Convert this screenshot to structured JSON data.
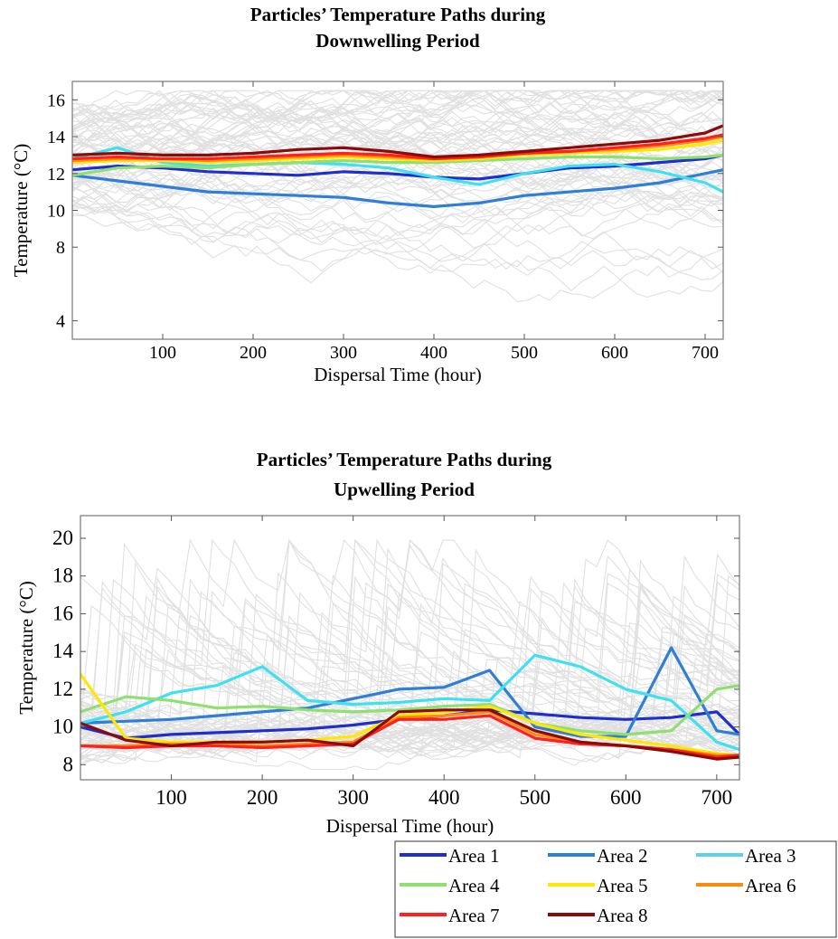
{
  "chart_data": [
    {
      "type": "line",
      "title": "Particles’ Temperature Paths during Downwelling Period",
      "title_lines": [
        "Particles’ Temperature Paths during",
        "Downwelling Period"
      ],
      "xlabel": "Dispersal Time (hour)",
      "ylabel": "Temperature (°C)",
      "xlim": [
        0,
        720
      ],
      "ylim": [
        3,
        17
      ],
      "xticks": [
        100,
        200,
        300,
        400,
        500,
        600,
        700
      ],
      "yticks": [
        4,
        8,
        10,
        12,
        14,
        16
      ],
      "background": "light grey trajectories of individual particles",
      "grid": false,
      "series": [
        {
          "name": "Area 1",
          "color": "#1f2ecc",
          "x": [
            0,
            50,
            100,
            150,
            200,
            250,
            300,
            350,
            400,
            450,
            500,
            550,
            600,
            650,
            700,
            720
          ],
          "y": [
            12.2,
            12.4,
            12.3,
            12.1,
            12.0,
            11.9,
            12.1,
            12.0,
            11.8,
            11.7,
            12.0,
            12.3,
            12.4,
            12.6,
            12.8,
            13.0
          ]
        },
        {
          "name": "Area 2",
          "color": "#2f7ed8",
          "x": [
            0,
            50,
            100,
            150,
            200,
            250,
            300,
            350,
            400,
            450,
            500,
            550,
            600,
            650,
            700,
            720
          ],
          "y": [
            11.9,
            11.6,
            11.3,
            11.0,
            10.9,
            10.8,
            10.7,
            10.4,
            10.2,
            10.4,
            10.8,
            11.0,
            11.2,
            11.5,
            12.0,
            12.2
          ]
        },
        {
          "name": "Area 3",
          "color": "#3fe0f0",
          "x": [
            0,
            50,
            100,
            150,
            200,
            250,
            300,
            350,
            400,
            450,
            500,
            550,
            600,
            650,
            700,
            720
          ],
          "y": [
            12.8,
            13.4,
            12.6,
            12.4,
            12.5,
            12.6,
            12.5,
            12.3,
            11.8,
            11.4,
            12.0,
            12.4,
            12.5,
            12.1,
            11.5,
            11.0
          ]
        },
        {
          "name": "Area 4",
          "color": "#8fe070",
          "x": [
            0,
            50,
            100,
            150,
            200,
            250,
            300,
            350,
            400,
            450,
            500,
            550,
            600,
            650,
            700,
            720
          ],
          "y": [
            11.9,
            12.3,
            12.4,
            12.3,
            12.5,
            12.6,
            12.7,
            12.6,
            12.6,
            12.7,
            12.8,
            12.9,
            12.9,
            12.8,
            12.9,
            13.0
          ]
        },
        {
          "name": "Area 5",
          "color": "#ffe800",
          "x": [
            0,
            50,
            100,
            150,
            200,
            250,
            300,
            350,
            400,
            450,
            500,
            550,
            600,
            650,
            700,
            720
          ],
          "y": [
            12.6,
            12.7,
            12.7,
            12.6,
            12.7,
            12.8,
            12.9,
            12.8,
            12.7,
            12.8,
            13.0,
            13.1,
            13.2,
            13.3,
            13.6,
            13.8
          ]
        },
        {
          "name": "Area 6",
          "color": "#ff8a10",
          "x": [
            0,
            50,
            100,
            150,
            200,
            250,
            300,
            350,
            400,
            450,
            500,
            550,
            600,
            650,
            700,
            720
          ],
          "y": [
            12.7,
            12.8,
            12.8,
            12.7,
            12.8,
            12.9,
            13.0,
            12.9,
            12.8,
            12.9,
            13.1,
            13.2,
            13.3,
            13.5,
            13.8,
            14.0
          ]
        },
        {
          "name": "Area 7",
          "color": "#ff2020",
          "x": [
            0,
            50,
            100,
            150,
            200,
            250,
            300,
            350,
            400,
            450,
            500,
            550,
            600,
            650,
            700,
            720
          ],
          "y": [
            12.8,
            12.9,
            12.8,
            12.8,
            12.9,
            13.0,
            13.1,
            13.0,
            12.8,
            12.9,
            13.1,
            13.2,
            13.4,
            13.6,
            13.9,
            14.1
          ]
        },
        {
          "name": "Area 8",
          "color": "#8b0a0a",
          "x": [
            0,
            50,
            100,
            150,
            200,
            250,
            300,
            350,
            400,
            450,
            500,
            550,
            600,
            650,
            700,
            720
          ],
          "y": [
            13.0,
            13.1,
            13.0,
            13.0,
            13.1,
            13.3,
            13.4,
            13.2,
            12.9,
            13.0,
            13.2,
            13.4,
            13.6,
            13.8,
            14.2,
            14.6
          ]
        }
      ]
    },
    {
      "type": "line",
      "title": "Particles’ Temperature Paths during Upwelling Period",
      "title_lines": [
        "Particles’ Temperature Paths during",
        "Upwelling Period"
      ],
      "xlabel": "Dispersal Time (hour)",
      "ylabel": "Temperature (°C)",
      "xlim": [
        0,
        725
      ],
      "ylim": [
        7.2,
        21.2
      ],
      "xticks": [
        100,
        200,
        300,
        400,
        500,
        600,
        700
      ],
      "yticks": [
        8,
        10,
        12,
        14,
        16,
        18,
        20
      ],
      "background": "light grey trajectories of individual particles",
      "grid": false,
      "series": [
        {
          "name": "Area 1",
          "color": "#1f2ecc",
          "x": [
            0,
            50,
            100,
            150,
            200,
            250,
            300,
            350,
            400,
            450,
            500,
            550,
            600,
            650,
            700,
            725
          ],
          "y": [
            10.0,
            9.4,
            9.6,
            9.7,
            9.8,
            9.9,
            10.1,
            10.4,
            10.6,
            10.9,
            10.7,
            10.5,
            10.4,
            10.5,
            10.8,
            9.6
          ]
        },
        {
          "name": "Area 2",
          "color": "#2f7ed8",
          "x": [
            0,
            50,
            100,
            150,
            200,
            250,
            300,
            350,
            400,
            450,
            500,
            550,
            600,
            650,
            700,
            725
          ],
          "y": [
            10.2,
            10.3,
            10.4,
            10.6,
            10.8,
            11.0,
            11.5,
            12.0,
            12.1,
            13.0,
            10.0,
            9.5,
            9.5,
            14.2,
            9.8,
            9.6
          ]
        },
        {
          "name": "Area 3",
          "color": "#3fe0f0",
          "x": [
            0,
            50,
            100,
            150,
            200,
            250,
            300,
            350,
            400,
            450,
            500,
            550,
            600,
            650,
            700,
            725
          ],
          "y": [
            10.2,
            10.8,
            11.8,
            12.2,
            13.2,
            11.4,
            11.2,
            11.3,
            11.5,
            11.4,
            13.8,
            13.2,
            12.0,
            11.4,
            9.2,
            8.8
          ]
        },
        {
          "name": "Area 4",
          "color": "#8fe070",
          "x": [
            0,
            50,
            100,
            150,
            200,
            250,
            300,
            350,
            400,
            450,
            500,
            550,
            600,
            650,
            700,
            725
          ],
          "y": [
            10.8,
            11.6,
            11.4,
            11.0,
            11.1,
            10.9,
            10.8,
            10.9,
            11.1,
            11.2,
            10.2,
            9.8,
            9.6,
            9.8,
            12.0,
            12.2
          ]
        },
        {
          "name": "Area 5",
          "color": "#ffe800",
          "x": [
            0,
            50,
            100,
            150,
            200,
            250,
            300,
            350,
            400,
            450,
            500,
            550,
            600,
            650,
            700,
            725
          ],
          "y": [
            12.8,
            9.4,
            9.2,
            9.2,
            9.2,
            9.3,
            9.5,
            10.6,
            10.8,
            11.1,
            10.2,
            9.6,
            9.3,
            9.0,
            8.6,
            8.5
          ]
        },
        {
          "name": "Area 6",
          "color": "#ff8a10",
          "x": [
            0,
            50,
            100,
            150,
            200,
            250,
            300,
            350,
            400,
            450,
            500,
            550,
            600,
            650,
            700,
            725
          ],
          "y": [
            9.0,
            9.0,
            9.1,
            9.1,
            9.0,
            9.1,
            9.2,
            10.5,
            10.6,
            10.8,
            9.6,
            9.2,
            9.0,
            8.8,
            8.5,
            8.5
          ]
        },
        {
          "name": "Area 7",
          "color": "#ff2020",
          "x": [
            0,
            50,
            100,
            150,
            200,
            250,
            300,
            350,
            400,
            450,
            500,
            550,
            600,
            650,
            700,
            725
          ],
          "y": [
            9.0,
            8.9,
            9.0,
            9.0,
            8.9,
            9.0,
            9.1,
            10.4,
            10.4,
            10.6,
            9.4,
            9.1,
            9.0,
            8.8,
            8.4,
            8.5
          ]
        },
        {
          "name": "Area 8",
          "color": "#8b0a0a",
          "x": [
            0,
            50,
            100,
            150,
            200,
            250,
            300,
            350,
            400,
            450,
            500,
            550,
            600,
            650,
            700,
            725
          ],
          "y": [
            10.2,
            9.3,
            9.0,
            9.2,
            9.2,
            9.3,
            9.0,
            10.8,
            10.9,
            10.9,
            9.8,
            9.2,
            9.0,
            8.7,
            8.3,
            8.4
          ]
        }
      ]
    }
  ],
  "legend": {
    "placement": "bottom-right",
    "items": [
      {
        "label": "Area 1",
        "color": "#1f2ecc"
      },
      {
        "label": "Area 2",
        "color": "#2f7ed8"
      },
      {
        "label": "Area 3",
        "color": "#5fd0ea"
      },
      {
        "label": "Area 4",
        "color": "#8fe070"
      },
      {
        "label": "Area 5",
        "color": "#ffe800"
      },
      {
        "label": "Area 6",
        "color": "#ff8a10"
      },
      {
        "label": "Area 7",
        "color": "#ff2020"
      },
      {
        "label": "Area 8",
        "color": "#8b0a0a"
      }
    ]
  }
}
